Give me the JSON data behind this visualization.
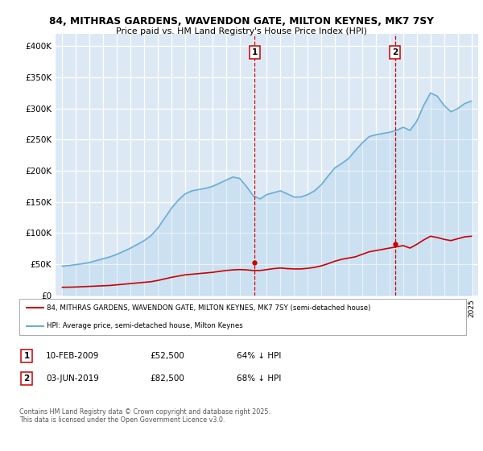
{
  "title_line1": "84, MITHRAS GARDENS, WAVENDON GATE, MILTON KEYNES, MK7 7SY",
  "title_line2": "Price paid vs. HM Land Registry's House Price Index (HPI)",
  "ylim": [
    0,
    420000
  ],
  "yticks": [
    0,
    50000,
    100000,
    150000,
    200000,
    250000,
    300000,
    350000,
    400000
  ],
  "ytick_labels": [
    "£0",
    "£50K",
    "£100K",
    "£150K",
    "£200K",
    "£250K",
    "£300K",
    "£350K",
    "£400K"
  ],
  "plot_bg_color": "#dce9f5",
  "grid_color": "#ffffff",
  "hpi_color": "#6baed6",
  "price_color": "#cc0000",
  "vline_color": "#cc0000",
  "marker1_year": 2009.1,
  "marker2_year": 2019.4,
  "legend_label_red": "84, MITHRAS GARDENS, WAVENDON GATE, MILTON KEYNES, MK7 7SY (semi-detached house)",
  "legend_label_blue": "HPI: Average price, semi-detached house, Milton Keynes",
  "annotation1_date": "10-FEB-2009",
  "annotation1_price": "£52,500",
  "annotation1_pct": "64% ↓ HPI",
  "annotation2_date": "03-JUN-2019",
  "annotation2_price": "£82,500",
  "annotation2_pct": "68% ↓ HPI",
  "footer": "Contains HM Land Registry data © Crown copyright and database right 2025.\nThis data is licensed under the Open Government Licence v3.0.",
  "hpi_x": [
    1995,
    1995.5,
    1996,
    1996.5,
    1997,
    1997.5,
    1998,
    1998.5,
    1999,
    1999.5,
    2000,
    2000.5,
    2001,
    2001.5,
    2002,
    2002.5,
    2003,
    2003.5,
    2004,
    2004.5,
    2005,
    2005.5,
    2006,
    2006.5,
    2007,
    2007.5,
    2008,
    2008.5,
    2009,
    2009.5,
    2010,
    2010.5,
    2011,
    2011.5,
    2012,
    2012.5,
    2013,
    2013.5,
    2014,
    2014.5,
    2015,
    2015.5,
    2016,
    2016.5,
    2017,
    2017.5,
    2018,
    2018.5,
    2019,
    2019.5,
    2020,
    2020.5,
    2021,
    2021.5,
    2022,
    2022.5,
    2023,
    2023.5,
    2024,
    2024.5,
    2025
  ],
  "hpi_y": [
    47000,
    48000,
    49500,
    51000,
    53000,
    56000,
    59000,
    62000,
    66000,
    71000,
    76000,
    82000,
    88000,
    96000,
    108000,
    124000,
    140000,
    153000,
    163000,
    168000,
    170000,
    172000,
    175000,
    180000,
    185000,
    190000,
    188000,
    175000,
    160000,
    155000,
    162000,
    165000,
    168000,
    163000,
    158000,
    158000,
    162000,
    168000,
    178000,
    192000,
    205000,
    212000,
    220000,
    233000,
    245000,
    255000,
    258000,
    260000,
    262000,
    265000,
    270000,
    265000,
    280000,
    305000,
    325000,
    320000,
    305000,
    295000,
    300000,
    308000,
    312000
  ],
  "price_x": [
    1995,
    1995.5,
    1996,
    1996.5,
    1997,
    1997.5,
    1998,
    1998.5,
    1999,
    1999.5,
    2000,
    2000.5,
    2001,
    2001.5,
    2002,
    2002.5,
    2003,
    2003.5,
    2004,
    2004.5,
    2005,
    2005.5,
    2006,
    2006.5,
    2007,
    2007.5,
    2008,
    2008.5,
    2009,
    2009.5,
    2010,
    2010.5,
    2011,
    2011.5,
    2012,
    2012.5,
    2013,
    2013.5,
    2014,
    2014.5,
    2015,
    2015.5,
    2016,
    2016.5,
    2017,
    2017.5,
    2018,
    2018.5,
    2019,
    2019.5,
    2020,
    2020.5,
    2021,
    2021.5,
    2022,
    2022.5,
    2023,
    2023.5,
    2024,
    2024.5,
    2025
  ],
  "price_y": [
    13000,
    13200,
    13500,
    14000,
    14500,
    15000,
    15500,
    16000,
    17000,
    18000,
    19000,
    20000,
    21000,
    22000,
    24000,
    26500,
    29000,
    31000,
    33000,
    34000,
    35000,
    36000,
    37000,
    38500,
    40000,
    41000,
    41500,
    41000,
    40000,
    40000,
    41500,
    43000,
    44000,
    43000,
    42500,
    42500,
    43500,
    45000,
    47500,
    51000,
    55000,
    58000,
    60000,
    62000,
    66000,
    70000,
    72000,
    74000,
    76000,
    78000,
    80000,
    76000,
    82000,
    89000,
    95000,
    93000,
    90000,
    88000,
    91000,
    94000,
    95000
  ]
}
